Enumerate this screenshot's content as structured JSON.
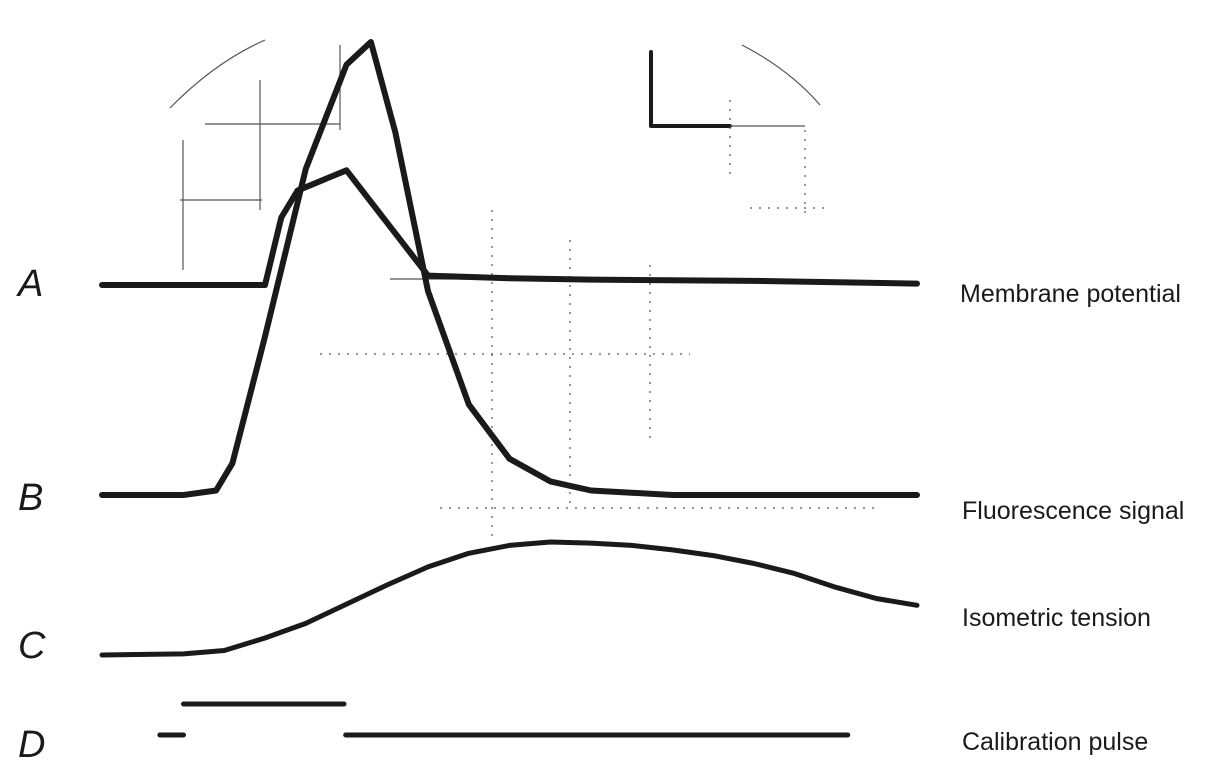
{
  "chart_data": {
    "type": "line",
    "title": "",
    "xlabel": "",
    "ylabel": "",
    "grid": true,
    "legend": "none",
    "series": [
      {
        "letter": "A",
        "name": "Membrane potential",
        "x": [
          0,
          2,
          4,
          6,
          8,
          10,
          12,
          14,
          16,
          18,
          20,
          22,
          24,
          26,
          28,
          30,
          40,
          50,
          60,
          80,
          100
        ],
        "values": [
          0,
          0,
          0,
          0,
          0,
          0,
          0,
          0,
          0,
          0,
          0,
          0.5,
          0.7,
          0.75,
          0.8,
          0.85,
          0.07,
          0.05,
          0.04,
          0.03,
          0.01
        ]
      },
      {
        "letter": "B",
        "name": "Fluorescence signal",
        "x": [
          0,
          10,
          14,
          16,
          20,
          25,
          30,
          33,
          36,
          40,
          45,
          50,
          55,
          60,
          70,
          80,
          100
        ],
        "values": [
          0,
          0,
          0.01,
          0.07,
          0.35,
          0.72,
          0.95,
          1.0,
          0.8,
          0.45,
          0.2,
          0.08,
          0.03,
          0.01,
          0,
          0,
          0
        ]
      },
      {
        "letter": "C",
        "name": "Isometric tension",
        "x": [
          0,
          10,
          15,
          20,
          25,
          30,
          35,
          40,
          45,
          50,
          55,
          60,
          65,
          70,
          75,
          80,
          85,
          90,
          95,
          100
        ],
        "values": [
          0,
          0.01,
          0.04,
          0.15,
          0.28,
          0.45,
          0.62,
          0.78,
          0.9,
          0.97,
          1.0,
          0.99,
          0.97,
          0.93,
          0.88,
          0.81,
          0.72,
          0.6,
          0.5,
          0.44
        ]
      },
      {
        "letter": "D",
        "name": "Calibration pulse",
        "x": [
          7,
          8,
          9,
          10,
          29.5,
          30,
          91.5
        ],
        "values": [
          0,
          0,
          1,
          1,
          1,
          0,
          0
        ]
      }
    ]
  }
}
